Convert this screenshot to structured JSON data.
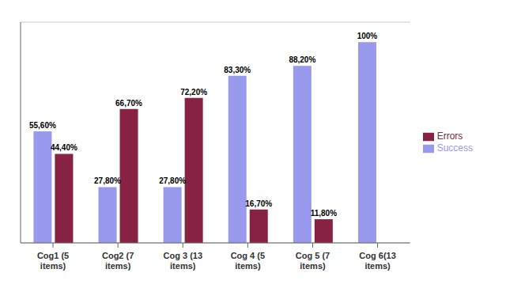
{
  "chart_data": {
    "type": "bar",
    "categories": [
      "Cog1 (5\nitems)",
      "Cog2 (7\nitems)",
      "Cog 3 (13\nitems)",
      "Cog 4 (5\nitems)",
      "Cog 5 (7\nitems)",
      "Cog 6(13\nitems)"
    ],
    "series": [
      {
        "name": "Success",
        "color": "#9999EE",
        "values": [
          55.6,
          27.8,
          27.8,
          83.3,
          88.2,
          100.0
        ],
        "value_labels": [
          "55,60%",
          "27,80%",
          "27,80%",
          "83,30%",
          "88,20%",
          "100%"
        ]
      },
      {
        "name": "Errors",
        "color": "#882244",
        "values": [
          44.4,
          66.7,
          72.2,
          16.7,
          11.8,
          0.0
        ],
        "value_labels": [
          "44,40%",
          "66,70%",
          "72,20%",
          "16,70%",
          "11,80%",
          null
        ]
      }
    ],
    "ylim": [
      0,
      110
    ],
    "yticks": [
      0,
      20,
      40,
      60,
      80,
      100
    ],
    "grid": true,
    "legend": "right",
    "data_labels": true,
    "tick_labels": "x"
  }
}
